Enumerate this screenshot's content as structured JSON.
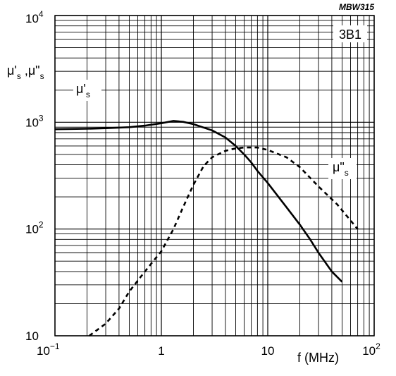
{
  "figure_code": "MBW315",
  "material": "3B1",
  "chart_data": {
    "type": "line",
    "x_scale": "log",
    "y_scale": "log",
    "xlim": [
      0.1,
      100
    ],
    "ylim": [
      10,
      10000
    ],
    "grid": true,
    "x_ticks": [
      {
        "value": 0.1,
        "base": "10",
        "exp": "−1"
      },
      {
        "value": 1,
        "base": "1",
        "exp": ""
      },
      {
        "value": 10,
        "base": "10",
        "exp": ""
      },
      {
        "value": 100,
        "base": "10",
        "exp": "2"
      }
    ],
    "y_ticks": [
      {
        "value": 10,
        "base": "10",
        "exp": ""
      },
      {
        "value": 100,
        "base": "10",
        "exp": "2"
      },
      {
        "value": 1000,
        "base": "10",
        "exp": "3"
      },
      {
        "value": 10000,
        "base": "10",
        "exp": "4"
      }
    ],
    "xlabel": "f (MHz)",
    "ylabel": "μ's ,μ\"s",
    "series": [
      {
        "name": "μ's",
        "style": "solid",
        "color": "#000000",
        "points": [
          [
            0.1,
            860
          ],
          [
            0.2,
            870
          ],
          [
            0.3,
            880
          ],
          [
            0.5,
            900
          ],
          [
            0.7,
            930
          ],
          [
            1.0,
            980
          ],
          [
            1.3,
            1030
          ],
          [
            1.6,
            1010
          ],
          [
            2.0,
            960
          ],
          [
            3.0,
            840
          ],
          [
            4.0,
            720
          ],
          [
            5.0,
            600
          ],
          [
            6.0,
            500
          ],
          [
            7.0,
            420
          ],
          [
            8.0,
            350
          ],
          [
            10.0,
            270
          ],
          [
            15.0,
            160
          ],
          [
            20.0,
            110
          ],
          [
            25.0,
            80
          ],
          [
            30.0,
            60
          ],
          [
            40.0,
            40
          ],
          [
            50.0,
            32
          ]
        ]
      },
      {
        "name": "μ\"s",
        "style": "dashed",
        "color": "#000000",
        "points": [
          [
            0.21,
            10
          ],
          [
            0.3,
            13
          ],
          [
            0.4,
            18
          ],
          [
            0.5,
            26
          ],
          [
            0.7,
            40
          ],
          [
            1.0,
            62
          ],
          [
            1.3,
            100
          ],
          [
            1.6,
            160
          ],
          [
            2.0,
            260
          ],
          [
            2.5,
            390
          ],
          [
            3.0,
            470
          ],
          [
            4.0,
            540
          ],
          [
            5.0,
            570
          ],
          [
            6.0,
            580
          ],
          [
            8.0,
            580
          ],
          [
            10.0,
            550
          ],
          [
            15.0,
            470
          ],
          [
            20.0,
            380
          ],
          [
            30.0,
            250
          ],
          [
            45.0,
            170
          ],
          [
            70.0,
            100
          ]
        ]
      }
    ]
  }
}
